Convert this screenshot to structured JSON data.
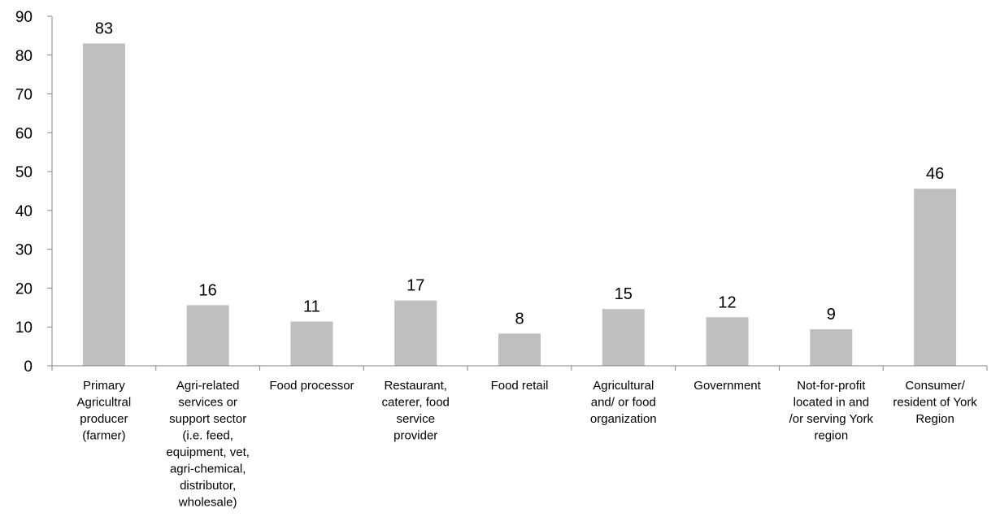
{
  "chart_data": {
    "type": "bar",
    "categories": [
      [
        "Primary",
        "Agricultral",
        "producer",
        "(farmer)"
      ],
      [
        "Agri-related",
        "services or",
        "support sector",
        "(i.e. feed,",
        "equipment, vet,",
        "agri-chemical,",
        "distributor,",
        "wholesale)"
      ],
      [
        "Food processor"
      ],
      [
        "Restaurant,",
        "caterer, food",
        "service",
        "provider"
      ],
      [
        "Food retail"
      ],
      [
        "Agricultural",
        "and/ or food",
        "organization"
      ],
      [
        "Government"
      ],
      [
        "Not-for-profit",
        "located in and",
        "/or serving York",
        "region"
      ],
      [
        "Consumer/",
        "resident of York",
        "Region"
      ]
    ],
    "values": [
      83,
      15.6,
      11.4,
      16.8,
      8.3,
      14.6,
      12.5,
      9.4,
      45.6
    ],
    "data_labels": [
      "83",
      "16",
      "11",
      "17",
      "8",
      "15",
      "12",
      "9",
      "46"
    ],
    "title": "",
    "xlabel": "",
    "ylabel": "",
    "ylim": [
      0,
      90
    ],
    "yticks": [
      "0",
      "10",
      "20",
      "30",
      "40",
      "50",
      "60",
      "70",
      "80",
      "90"
    ],
    "grid": false,
    "legend": "none",
    "colors": {
      "bar": "#bfbfbf",
      "axis": "#868686",
      "text": "#000000"
    }
  }
}
